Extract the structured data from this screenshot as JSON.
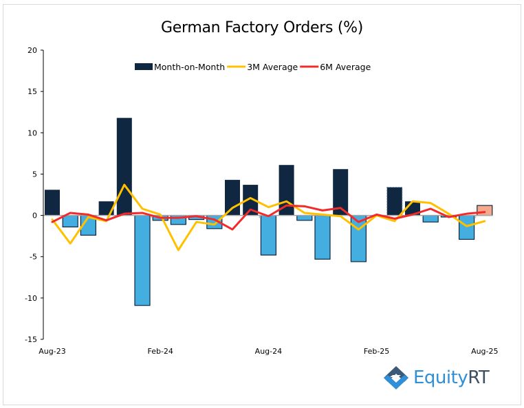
{
  "chart_data": {
    "type": "bar",
    "title": "German Factory Orders (%)",
    "xlabel": "",
    "ylabel": "",
    "ylim": [
      -15,
      20
    ],
    "yticks": [
      -15,
      -10,
      -5,
      0,
      5,
      10,
      15,
      20
    ],
    "ytick_labels": [
      "-15",
      "-10",
      "-5",
      "0",
      "5",
      "10",
      "15",
      "20"
    ],
    "categories": [
      "Aug-23",
      "Sep-23",
      "Oct-23",
      "Nov-23",
      "Dec-23",
      "Jan-24",
      "Feb-24",
      "Mar-24",
      "Apr-24",
      "May-24",
      "Jun-24",
      "Jul-24",
      "Aug-24",
      "Sep-24",
      "Oct-24",
      "Nov-24",
      "Dec-24",
      "Jan-25",
      "Feb-25",
      "Mar-25",
      "Apr-25",
      "May-25",
      "Jun-25",
      "Jul-25",
      "Aug-25"
    ],
    "xtick_labels": [
      {
        "index": 0,
        "label": "Aug-23"
      },
      {
        "index": 6,
        "label": "Feb-24"
      },
      {
        "index": 12,
        "label": "Aug-24"
      },
      {
        "index": 18,
        "label": "Feb-25"
      },
      {
        "index": 24,
        "label": "Aug-25"
      }
    ],
    "grid": false,
    "legend_position": "top-center",
    "series": [
      {
        "name": "Month-on-Month",
        "kind": "bar",
        "color_positive": "#0f2741",
        "color_negative": "#45aee0",
        "border_color": "#0f2741",
        "values": [
          3.1,
          -1.4,
          -2.4,
          1.7,
          11.8,
          -10.9,
          -0.6,
          -1.1,
          -0.5,
          -1.6,
          4.3,
          3.7,
          -4.8,
          6.1,
          -0.6,
          -5.3,
          5.6,
          -5.6,
          0.0,
          3.4,
          1.7,
          -0.8,
          -0.2,
          -2.9,
          1.2
        ],
        "highlight": [
          {
            "index": 19,
            "style": "dotted-border"
          },
          {
            "index": 24,
            "style": "latest",
            "color": "#f4a98a"
          }
        ]
      },
      {
        "name": "3M Average",
        "kind": "line",
        "color": "#ffc000",
        "values": [
          -0.5,
          -3.4,
          -0.2,
          -0.7,
          3.7,
          0.8,
          0.1,
          -4.2,
          -0.8,
          -1.1,
          0.9,
          2.1,
          1.0,
          1.7,
          0.3,
          0.1,
          -0.1,
          -1.7,
          0.0,
          -0.7,
          1.7,
          1.5,
          0.2,
          -1.3,
          -0.7
        ]
      },
      {
        "name": "6M Average",
        "kind": "line",
        "color": "#f22a2a",
        "values": [
          -0.8,
          0.3,
          0.1,
          -0.6,
          0.2,
          0.3,
          -0.3,
          -0.3,
          -0.1,
          -0.5,
          -1.7,
          0.7,
          -0.1,
          1.2,
          1.1,
          0.6,
          0.9,
          -0.8,
          0.1,
          -0.4,
          0.1,
          0.8,
          -0.2,
          0.2,
          0.4
        ]
      }
    ]
  },
  "logo": {
    "text_part1": "Equity",
    "text_part2": "RT"
  }
}
